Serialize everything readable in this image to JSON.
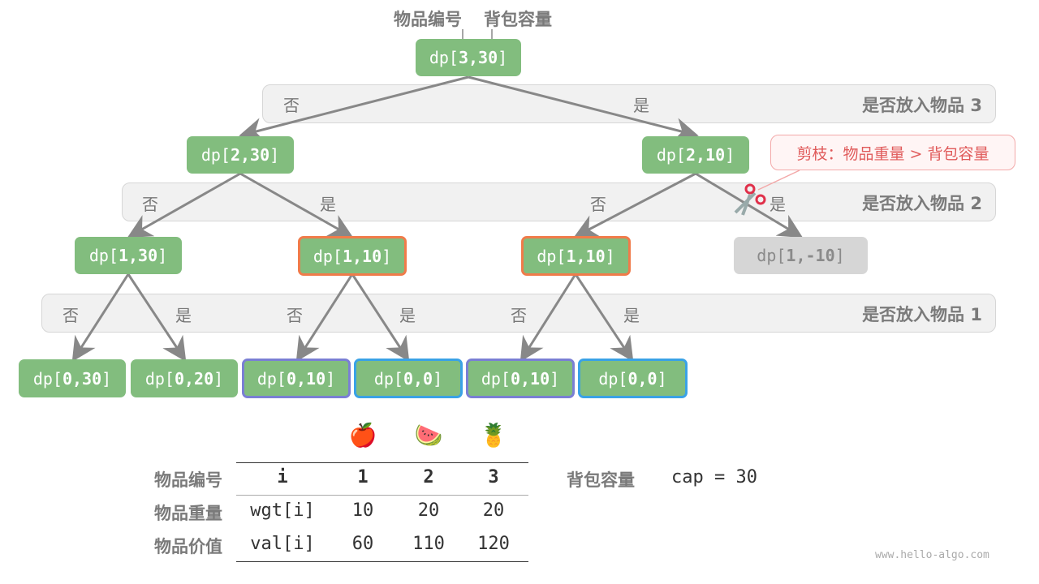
{
  "header": {
    "item_label": "物品编号",
    "capacity_label": "背包容量"
  },
  "bands": [
    {
      "label": "是否放入物品 3",
      "no": "否",
      "yes": "是"
    },
    {
      "label": "是否放入物品 2",
      "no": [
        "否",
        "否"
      ],
      "yes": [
        "是",
        "是"
      ]
    },
    {
      "label": "是否放入物品 1",
      "no": [
        "否",
        "否",
        "否"
      ],
      "yes": [
        "是",
        "是",
        "是"
      ]
    }
  ],
  "nodes": {
    "root": {
      "pre": "dp[",
      "args": "3,30",
      "post": "]"
    },
    "l1": [
      {
        "pre": "dp[",
        "args": "2,30",
        "post": "]"
      },
      {
        "pre": "dp[",
        "args": "2,10",
        "post": "]"
      }
    ],
    "l2": [
      {
        "pre": "dp[",
        "args": "1,30",
        "post": "]"
      },
      {
        "pre": "dp[",
        "args": "1,10",
        "post": "]"
      },
      {
        "pre": "dp[",
        "args": "1,10",
        "post": "]"
      },
      {
        "pre": "dp[",
        "args": "1,-10",
        "post": "]"
      }
    ],
    "l3": [
      {
        "pre": "dp[",
        "args": "0,30",
        "post": "]"
      },
      {
        "pre": "dp[",
        "args": "0,20",
        "post": "]"
      },
      {
        "pre": "dp[",
        "args": "0,10",
        "post": "]"
      },
      {
        "pre": "dp[",
        "args": "0,0",
        "post": "]"
      },
      {
        "pre": "dp[",
        "args": "0,10",
        "post": "]"
      },
      {
        "pre": "dp[",
        "args": "0,0",
        "post": "]"
      }
    ]
  },
  "prune_callout": "剪枝：物品重量 > 背包容量",
  "table": {
    "icons": [
      "apple-icon",
      "watermelon-icon",
      "pineapple-icon"
    ],
    "emoji": [
      "🍎",
      "🍉",
      "🍍"
    ],
    "rows": [
      {
        "label": "物品编号",
        "cells": [
          "i",
          "1",
          "2",
          "3"
        ]
      },
      {
        "label": "物品重量",
        "cells": [
          "wgt[i]",
          "10",
          "20",
          "20"
        ]
      },
      {
        "label": "物品价值",
        "cells": [
          "val[i]",
          "60",
          "110",
          "120"
        ]
      }
    ]
  },
  "capacity": {
    "label": "背包容量",
    "value": "cap = 30"
  },
  "watermark": "www.hello-algo.com",
  "colors": {
    "node": "#82bd7e",
    "overlap_orange": "#f07b4a",
    "overlap_purple": "#7a7fd4",
    "overlap_blue": "#3aa2e6",
    "pruned": "#d6d6d6",
    "prune_red": "#e05a5a"
  }
}
